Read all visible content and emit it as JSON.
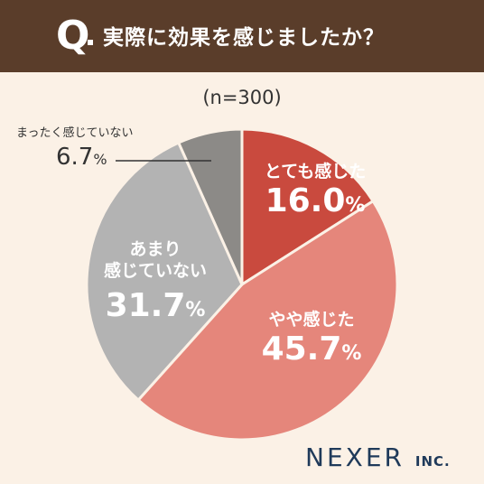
{
  "header": {
    "q_mark": "Q",
    "question": "実際に効果を感じましたか？"
  },
  "sample": "(n=300)",
  "chart_data": {
    "type": "pie",
    "categories": [
      "とても感じた",
      "やや感じた",
      "あまり感じていない",
      "まったく感じていない"
    ],
    "values": [
      16.0,
      45.7,
      31.7,
      6.7
    ],
    "value_labels": [
      "16.0",
      "45.7",
      "31.7",
      "6.7"
    ],
    "unit": "%",
    "title": "実際に効果を感じましたか？",
    "colors": [
      "#c94a3e",
      "#e5867b",
      "#b3b3b3",
      "#8c8a87"
    ]
  },
  "labels": {
    "s0": {
      "cat": "とても感じた",
      "val": "16.0"
    },
    "s1": {
      "cat": "やや感じた",
      "val": "45.7"
    },
    "s2": {
      "cat1": "あまり",
      "cat2": "感じていない",
      "val": "31.7"
    },
    "s3": {
      "cat": "まったく感じていない",
      "val": "6.7"
    },
    "pct": "%"
  },
  "logo": {
    "name": "NEXER",
    "suffix": "INC."
  }
}
